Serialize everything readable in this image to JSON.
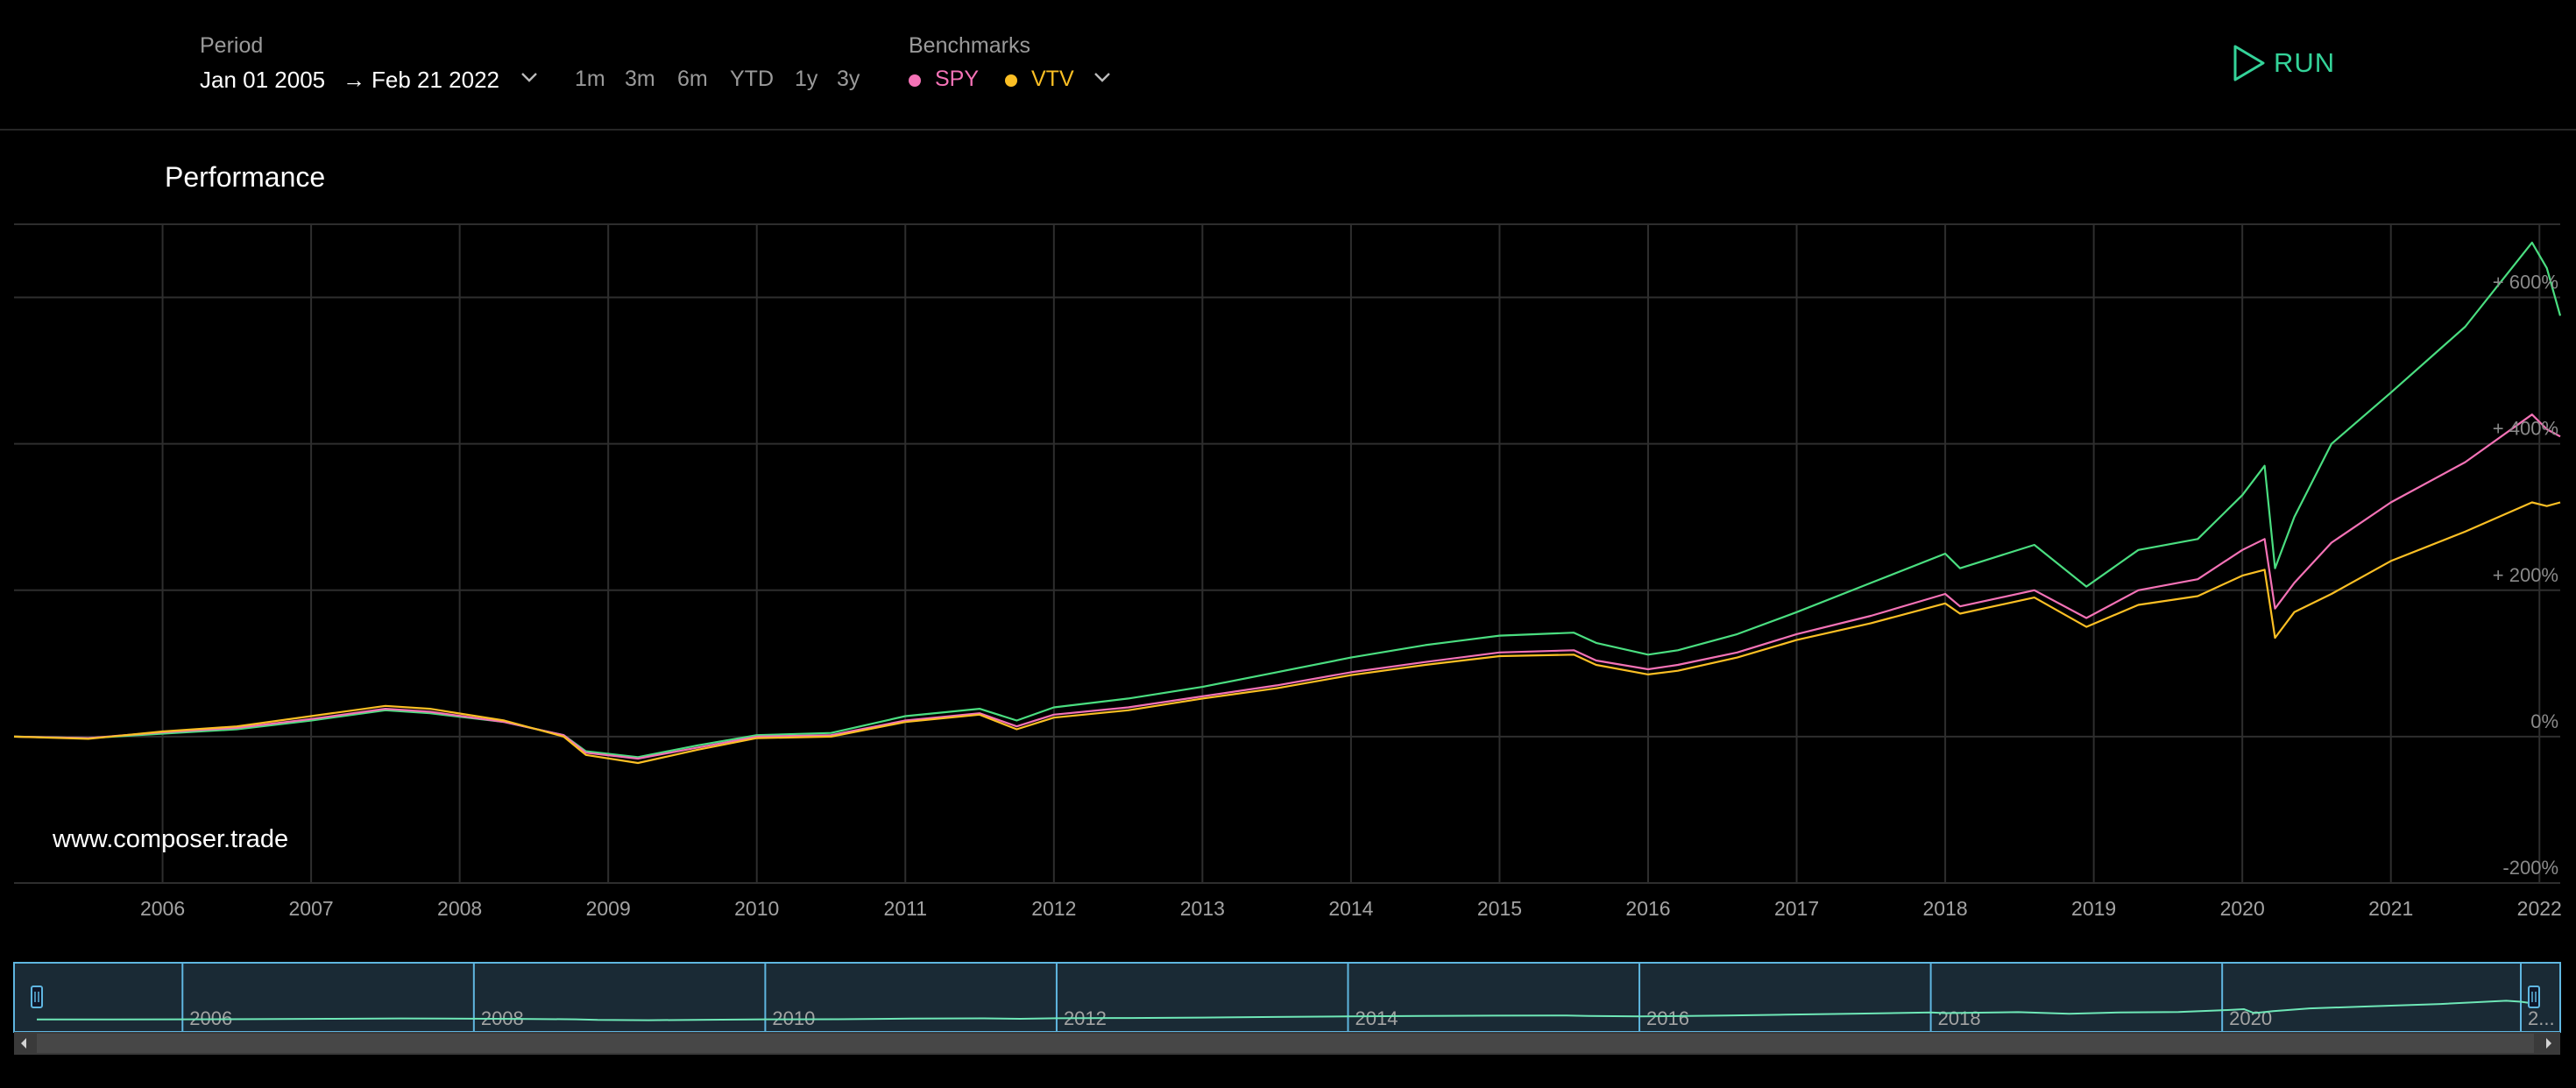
{
  "toolbar": {
    "period_label": "Period",
    "start_date": "Jan 01 2005",
    "arrow": "→",
    "end_date": "Feb 21 2022",
    "quick_ranges": [
      "1m",
      "3m",
      "6m",
      "YTD",
      "1y",
      "3y"
    ],
    "benchmarks_label": "Benchmarks",
    "benchmarks": [
      {
        "name": "SPY",
        "color": "#f472b6"
      },
      {
        "name": "VTV",
        "color": "#fbbf24"
      }
    ],
    "run_label": "RUN",
    "run_color": "#34d399"
  },
  "panel": {
    "title": "Performance",
    "watermark": "www.composer.trade"
  },
  "chart_data": {
    "type": "line",
    "y_unit": "percent return",
    "ylim": [
      -200,
      700
    ],
    "y_ticks": [
      {
        "value": 600,
        "label": "+ 600%"
      },
      {
        "value": 400,
        "label": "+ 400%"
      },
      {
        "value": 200,
        "label": "+ 200%"
      },
      {
        "value": 0,
        "label": "0%"
      },
      {
        "value": -200,
        "label": "-200%"
      }
    ],
    "x_range": [
      2005.0,
      2022.14
    ],
    "x_ticks": [
      "2006",
      "2007",
      "2008",
      "2009",
      "2010",
      "2011",
      "2012",
      "2013",
      "2014",
      "2015",
      "2016",
      "2017",
      "2018",
      "2019",
      "2020",
      "2021",
      "2022"
    ],
    "grid": true,
    "series": [
      {
        "color": "#4ade80",
        "points": [
          [
            2005.0,
            0
          ],
          [
            2005.5,
            -2
          ],
          [
            2006.0,
            4
          ],
          [
            2006.5,
            10
          ],
          [
            2007.0,
            22
          ],
          [
            2007.5,
            36
          ],
          [
            2007.8,
            32
          ],
          [
            2008.3,
            20
          ],
          [
            2008.7,
            2
          ],
          [
            2008.85,
            -20
          ],
          [
            2009.2,
            -28
          ],
          [
            2009.6,
            -12
          ],
          [
            2010.0,
            2
          ],
          [
            2010.5,
            5
          ],
          [
            2011.0,
            28
          ],
          [
            2011.5,
            38
          ],
          [
            2011.75,
            22
          ],
          [
            2012.0,
            40
          ],
          [
            2012.5,
            52
          ],
          [
            2013.0,
            68
          ],
          [
            2013.5,
            88
          ],
          [
            2014.0,
            108
          ],
          [
            2014.5,
            125
          ],
          [
            2015.0,
            138
          ],
          [
            2015.5,
            142
          ],
          [
            2015.65,
            128
          ],
          [
            2016.0,
            112
          ],
          [
            2016.2,
            118
          ],
          [
            2016.6,
            140
          ],
          [
            2017.0,
            170
          ],
          [
            2017.5,
            210
          ],
          [
            2018.0,
            250
          ],
          [
            2018.1,
            230
          ],
          [
            2018.6,
            262
          ],
          [
            2018.95,
            205
          ],
          [
            2019.3,
            255
          ],
          [
            2019.7,
            270
          ],
          [
            2020.0,
            330
          ],
          [
            2020.15,
            370
          ],
          [
            2020.22,
            230
          ],
          [
            2020.35,
            300
          ],
          [
            2020.6,
            400
          ],
          [
            2021.0,
            470
          ],
          [
            2021.5,
            560
          ],
          [
            2021.95,
            675
          ],
          [
            2022.05,
            640
          ],
          [
            2022.14,
            575
          ]
        ]
      },
      {
        "color": "#f472b6",
        "points": [
          [
            2005.0,
            0
          ],
          [
            2005.5,
            -2
          ],
          [
            2006.0,
            6
          ],
          [
            2006.5,
            12
          ],
          [
            2007.0,
            24
          ],
          [
            2007.5,
            38
          ],
          [
            2007.8,
            34
          ],
          [
            2008.3,
            20
          ],
          [
            2008.7,
            2
          ],
          [
            2008.85,
            -22
          ],
          [
            2009.2,
            -30
          ],
          [
            2009.6,
            -15
          ],
          [
            2010.0,
            0
          ],
          [
            2010.5,
            2
          ],
          [
            2011.0,
            22
          ],
          [
            2011.5,
            32
          ],
          [
            2011.75,
            14
          ],
          [
            2012.0,
            30
          ],
          [
            2012.5,
            40
          ],
          [
            2013.0,
            55
          ],
          [
            2013.5,
            70
          ],
          [
            2014.0,
            88
          ],
          [
            2014.5,
            102
          ],
          [
            2015.0,
            115
          ],
          [
            2015.5,
            118
          ],
          [
            2015.65,
            104
          ],
          [
            2016.0,
            92
          ],
          [
            2016.2,
            98
          ],
          [
            2016.6,
            115
          ],
          [
            2017.0,
            140
          ],
          [
            2017.5,
            165
          ],
          [
            2018.0,
            195
          ],
          [
            2018.1,
            178
          ],
          [
            2018.6,
            200
          ],
          [
            2018.95,
            162
          ],
          [
            2019.3,
            200
          ],
          [
            2019.7,
            215
          ],
          [
            2020.0,
            255
          ],
          [
            2020.15,
            270
          ],
          [
            2020.22,
            175
          ],
          [
            2020.35,
            210
          ],
          [
            2020.6,
            265
          ],
          [
            2021.0,
            320
          ],
          [
            2021.5,
            375
          ],
          [
            2021.95,
            440
          ],
          [
            2022.05,
            420
          ],
          [
            2022.14,
            410
          ]
        ]
      },
      {
        "color": "#fbbf24",
        "points": [
          [
            2005.0,
            0
          ],
          [
            2005.5,
            -3
          ],
          [
            2006.0,
            7
          ],
          [
            2006.5,
            14
          ],
          [
            2007.0,
            28
          ],
          [
            2007.5,
            42
          ],
          [
            2007.8,
            38
          ],
          [
            2008.3,
            22
          ],
          [
            2008.7,
            0
          ],
          [
            2008.85,
            -25
          ],
          [
            2009.2,
            -36
          ],
          [
            2009.6,
            -18
          ],
          [
            2010.0,
            -2
          ],
          [
            2010.5,
            0
          ],
          [
            2011.0,
            20
          ],
          [
            2011.5,
            30
          ],
          [
            2011.75,
            10
          ],
          [
            2012.0,
            26
          ],
          [
            2012.5,
            36
          ],
          [
            2013.0,
            52
          ],
          [
            2013.5,
            66
          ],
          [
            2014.0,
            84
          ],
          [
            2014.5,
            98
          ],
          [
            2015.0,
            110
          ],
          [
            2015.5,
            112
          ],
          [
            2015.65,
            98
          ],
          [
            2016.0,
            85
          ],
          [
            2016.2,
            90
          ],
          [
            2016.6,
            108
          ],
          [
            2017.0,
            132
          ],
          [
            2017.5,
            155
          ],
          [
            2018.0,
            182
          ],
          [
            2018.1,
            168
          ],
          [
            2018.6,
            190
          ],
          [
            2018.95,
            150
          ],
          [
            2019.3,
            180
          ],
          [
            2019.7,
            192
          ],
          [
            2020.0,
            220
          ],
          [
            2020.15,
            228
          ],
          [
            2020.22,
            135
          ],
          [
            2020.35,
            170
          ],
          [
            2020.6,
            195
          ],
          [
            2021.0,
            240
          ],
          [
            2021.5,
            280
          ],
          [
            2021.95,
            320
          ],
          [
            2022.05,
            315
          ],
          [
            2022.14,
            320
          ]
        ]
      }
    ],
    "navigator": {
      "x_ticks": [
        "2006",
        "2008",
        "2010",
        "2012",
        "2014",
        "2016",
        "2018",
        "2020",
        "2..."
      ]
    }
  }
}
